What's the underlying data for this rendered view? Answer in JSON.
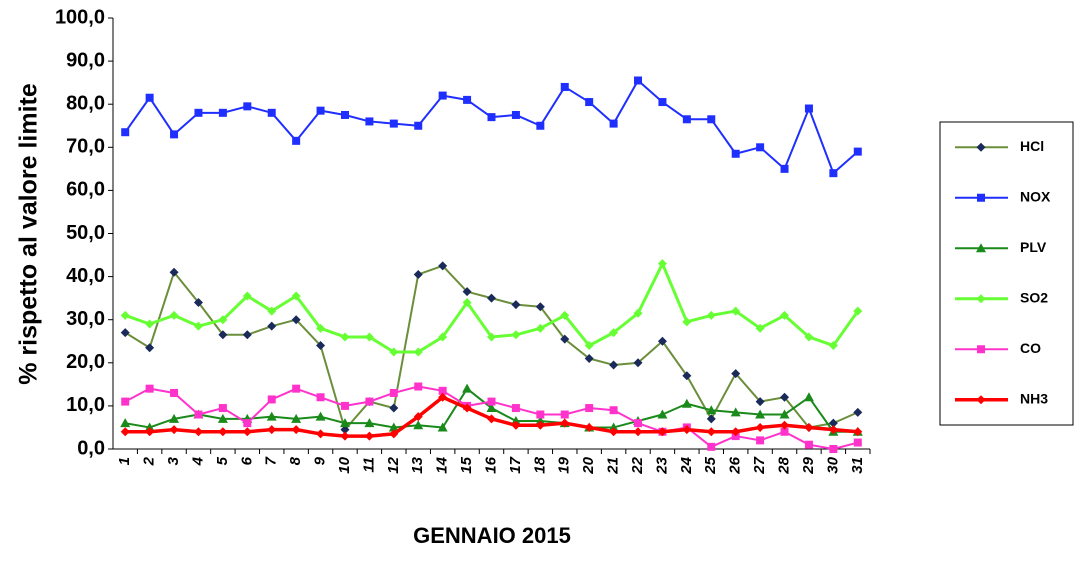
{
  "chart_data": {
    "type": "line",
    "y_label": "% rispetto al valore limite",
    "x_label": "GENNAIO 2015",
    "categories": [
      "1",
      "2",
      "3",
      "4",
      "5",
      "6",
      "7",
      "8",
      "9",
      "10",
      "11",
      "12",
      "13",
      "14",
      "15",
      "16",
      "17",
      "18",
      "19",
      "20",
      "21",
      "22",
      "23",
      "24",
      "25",
      "26",
      "27",
      "28",
      "29",
      "30",
      "31"
    ],
    "ylim": [
      0,
      100
    ],
    "yticks": [
      {
        "value": 0,
        "label": "0,0"
      },
      {
        "value": 10,
        "label": "10,0"
      },
      {
        "value": 20,
        "label": "20,0"
      },
      {
        "value": 30,
        "label": "30,0"
      },
      {
        "value": 40,
        "label": "40,0"
      },
      {
        "value": 50,
        "label": "50,0"
      },
      {
        "value": 60,
        "label": "60,0"
      },
      {
        "value": 70,
        "label": "70,0"
      },
      {
        "value": 80,
        "label": "80,0"
      },
      {
        "value": 90,
        "label": "90,0"
      },
      {
        "value": 100,
        "label": "100,0"
      }
    ],
    "legend": "right",
    "series": [
      {
        "name": "HCl",
        "color": "#6b8e3a",
        "marker": "diamond",
        "marker_color": "#1a2a5a",
        "line_width": 2,
        "values": [
          27,
          23.5,
          41,
          34,
          26.5,
          26.5,
          28.5,
          30,
          24,
          4.5,
          11,
          9.5,
          40.5,
          42.5,
          36.5,
          35,
          33.5,
          33,
          25.5,
          21,
          19.5,
          20,
          25,
          17,
          7,
          17.5,
          11,
          12,
          5,
          6,
          8.5
        ]
      },
      {
        "name": "NOX",
        "color": "#1f2fff",
        "marker": "square",
        "marker_color": "#1f2fff",
        "line_width": 2,
        "values": [
          73.5,
          81.5,
          73,
          78,
          78,
          79.5,
          78,
          71.5,
          78.5,
          77.5,
          76,
          75.5,
          75,
          82,
          81,
          77,
          77.5,
          75,
          84,
          80.5,
          75.5,
          85.5,
          80.5,
          76.5,
          76.5,
          68.5,
          70,
          65,
          79,
          64,
          69
        ]
      },
      {
        "name": "PLV",
        "color": "#1a8a1a",
        "marker": "triangle",
        "marker_color": "#1a8a1a",
        "line_width": 2,
        "values": [
          6,
          5,
          7,
          8,
          7,
          7,
          7.5,
          7,
          7.5,
          6,
          6,
          5,
          5.5,
          5,
          14,
          9.5,
          6.5,
          6.5,
          6,
          5,
          5,
          6.5,
          8,
          10.5,
          9,
          8.5,
          8,
          8,
          12,
          4,
          4
        ]
      },
      {
        "name": "SO2",
        "color": "#66ff33",
        "marker": "diamond",
        "marker_color": "#66ff33",
        "line_width": 3,
        "values": [
          31,
          29,
          31,
          28.5,
          30,
          35.5,
          32,
          35.5,
          28,
          26,
          26,
          22.5,
          22.5,
          26,
          34,
          26,
          26.5,
          28,
          31,
          24,
          27,
          31.5,
          43,
          29.5,
          31,
          32,
          28,
          31,
          26,
          24,
          32
        ]
      },
      {
        "name": "CO",
        "color": "#ff33cc",
        "marker": "square",
        "marker_color": "#ff33cc",
        "line_width": 2,
        "values": [
          11,
          14,
          13,
          8,
          9.5,
          6,
          11.5,
          14,
          12,
          10,
          11,
          13,
          14.5,
          13.5,
          10,
          11,
          9.5,
          8,
          8,
          9.5,
          9,
          6,
          4,
          5,
          0.5,
          3,
          2,
          4,
          1,
          0,
          1.5
        ]
      },
      {
        "name": "NH3",
        "color": "#ff0000",
        "marker": "diamond",
        "marker_color": "#ff0000",
        "line_width": 3.5,
        "values": [
          4,
          4,
          4.5,
          4,
          4,
          4,
          4.5,
          4.5,
          3.5,
          3,
          3,
          3.5,
          7.5,
          12,
          9.5,
          7,
          5.5,
          5.5,
          6,
          5,
          4,
          4,
          4,
          4.5,
          4,
          4,
          5,
          5.5,
          5,
          4.5,
          4
        ]
      }
    ]
  }
}
